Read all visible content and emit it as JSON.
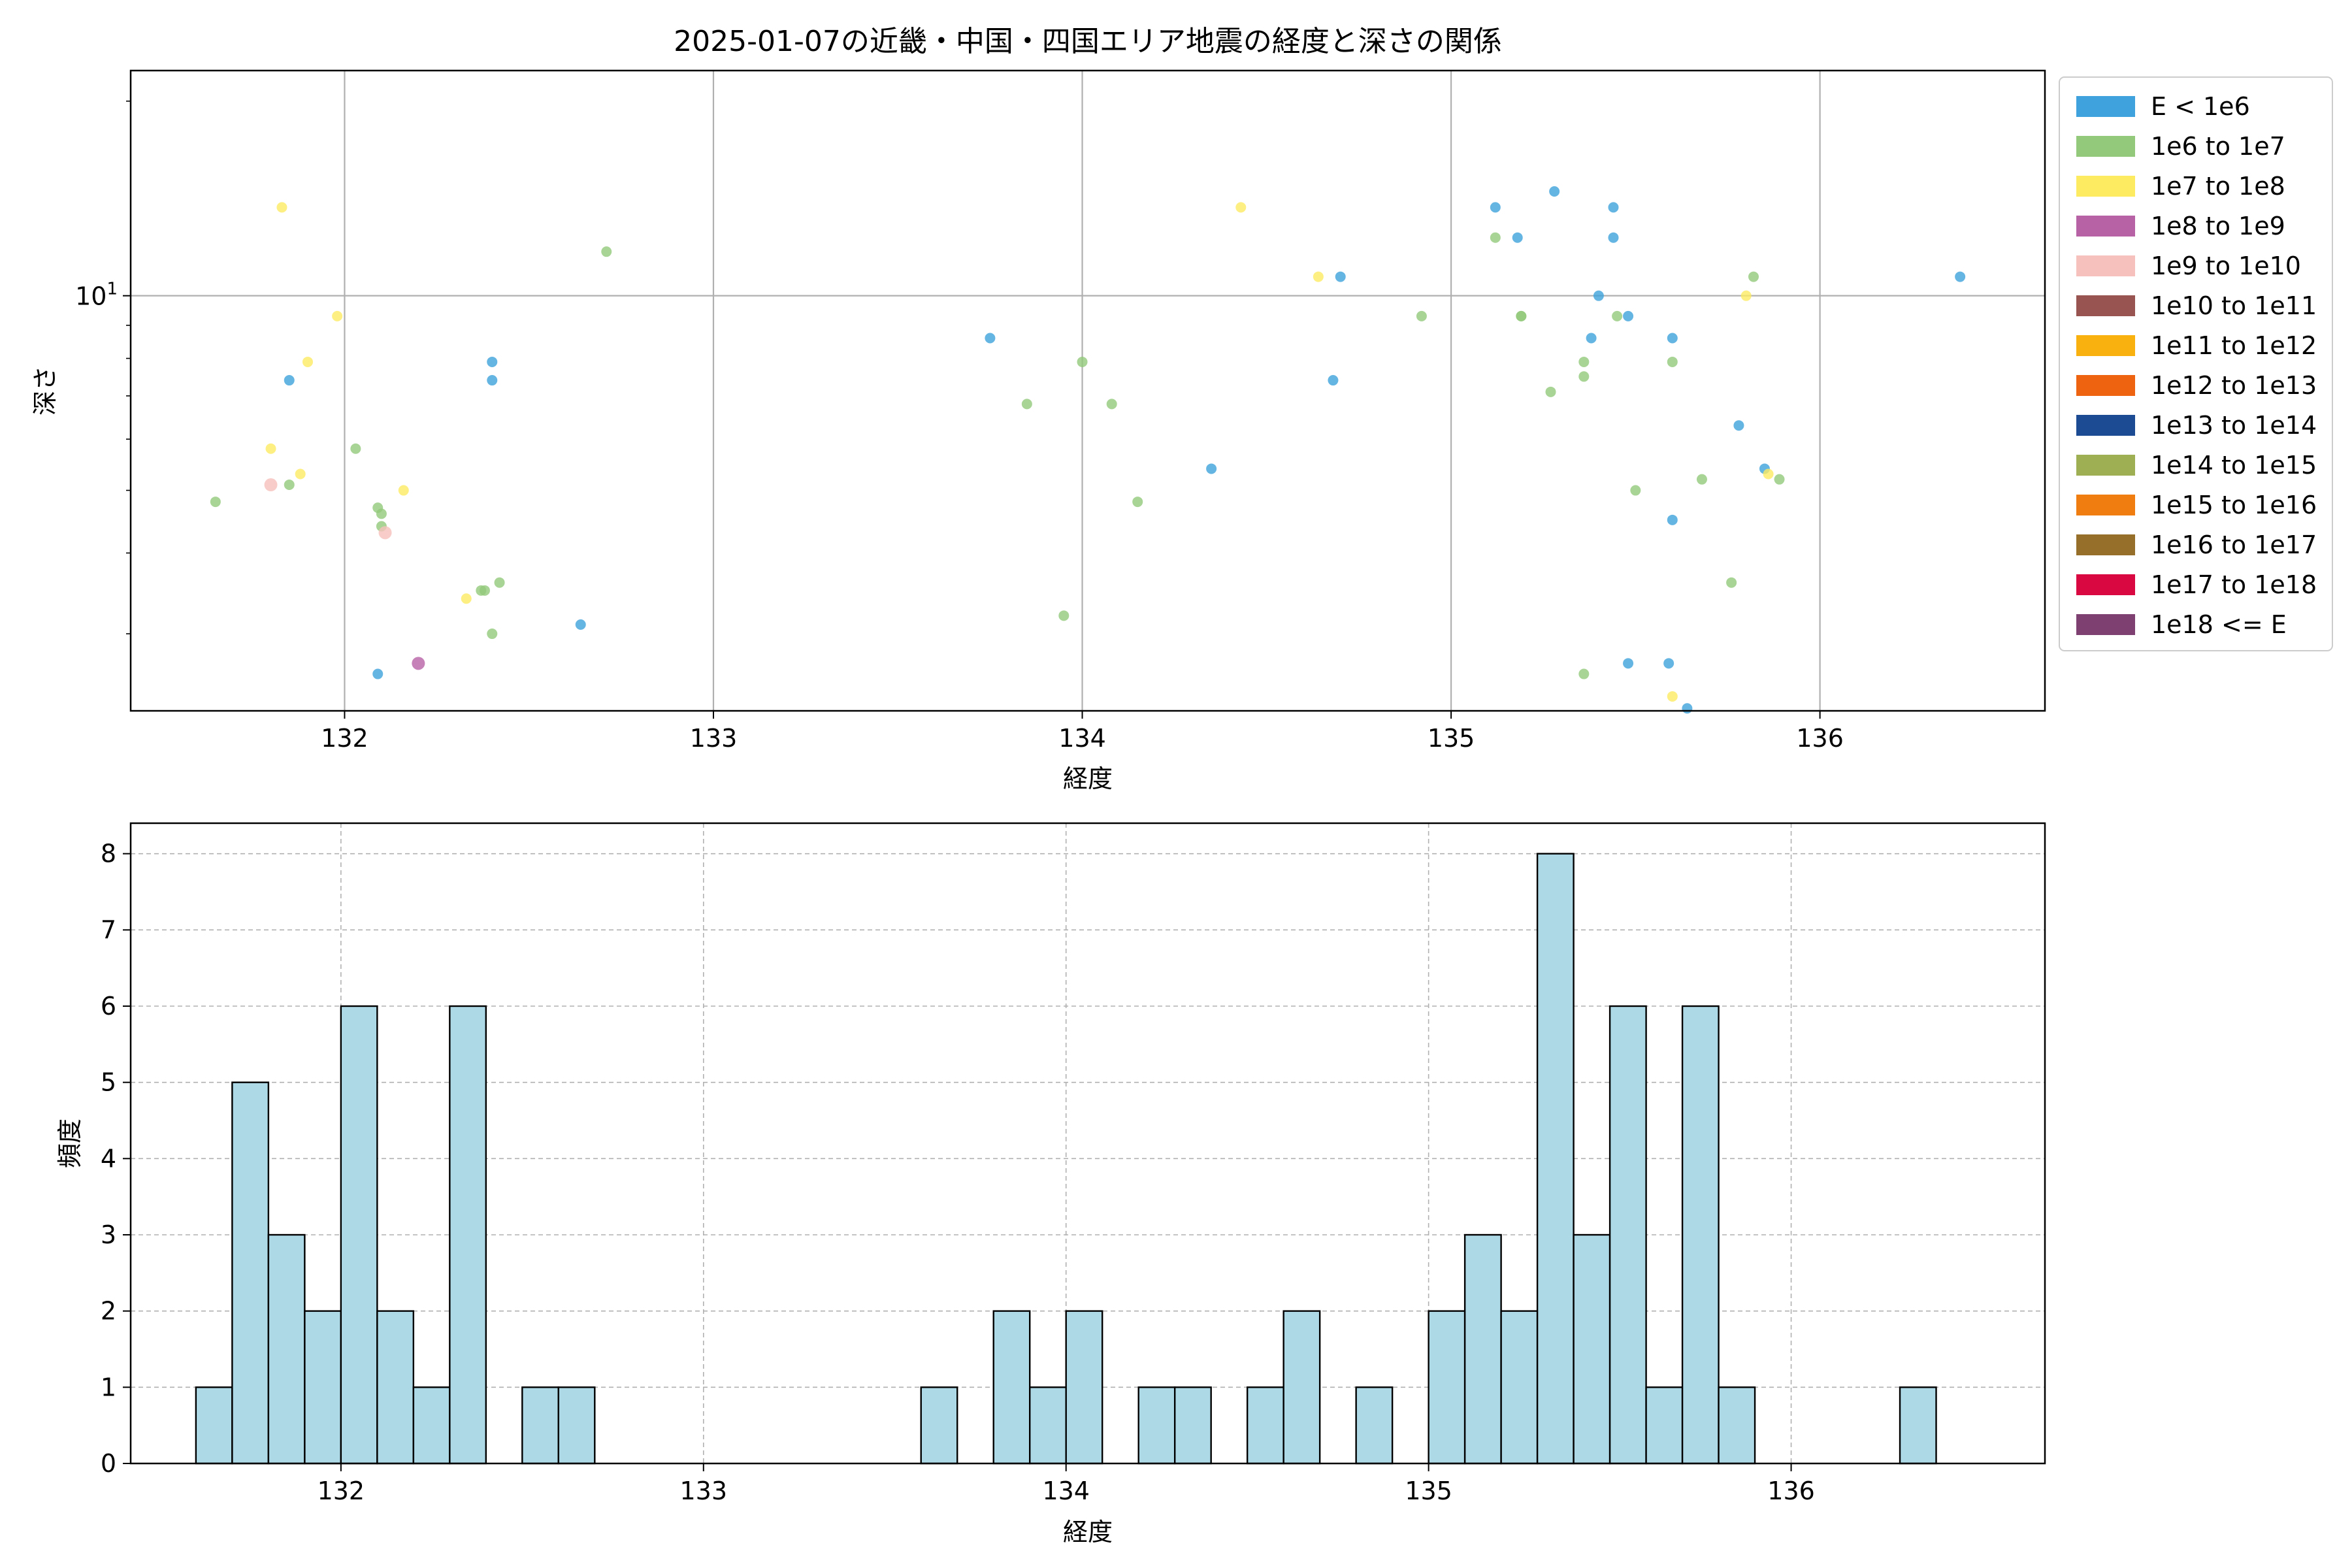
{
  "title": "2025-01-07の近畿・中国・四国エリア地震の経度と深さの関係",
  "chart_data": [
    {
      "type": "scatter",
      "title": "2025-01-07の近畿・中国・四国エリア地震の経度と深さの関係",
      "xlabel": "経度",
      "ylabel": "深さ",
      "yscale": "log",
      "xlim": [
        131.42,
        136.61
      ],
      "ylim": [
        2.28,
        22.3
      ],
      "x_ticks": [
        {
          "value": 132,
          "label": "132"
        },
        {
          "value": 133,
          "label": "133"
        },
        {
          "value": 134,
          "label": "134"
        },
        {
          "value": 135,
          "label": "135"
        },
        {
          "value": 136,
          "label": "136"
        }
      ],
      "y_ticks": [
        {
          "value": 10,
          "label": "10",
          "exp": "1"
        }
      ],
      "grid": true,
      "legend": {
        "placement": "outside-right",
        "entries": [
          {
            "label": "E < 1e6",
            "color": "#3fa2dc"
          },
          {
            "label": "1e6 to 1e7",
            "color": "#92c97b"
          },
          {
            "label": "1e7 to 1e8",
            "color": "#fdeb62"
          },
          {
            "label": "1e8 to 1e9",
            "color": "#b862a6"
          },
          {
            "label": "1e9 to 1e10",
            "color": "#f6c0bc"
          },
          {
            "label": "1e10 to 1e11",
            "color": "#975451"
          },
          {
            "label": "1e11 to 1e12",
            "color": "#f8b10f"
          },
          {
            "label": "1e12 to 1e13",
            "color": "#ee6310"
          },
          {
            "label": "1e13 to 1e14",
            "color": "#1d4b93"
          },
          {
            "label": "1e14 to 1e15",
            "color": "#9daf52"
          },
          {
            "label": "1e15 to 1e16",
            "color": "#ef7d10"
          },
          {
            "label": "1e16 to 1e17",
            "color": "#966f2b"
          },
          {
            "label": "1e17 to 1e18",
            "color": "#d90841"
          },
          {
            "label": "1e18 <= E",
            "color": "#7d4070"
          }
        ]
      },
      "series": [
        {
          "name": "E < 1e6",
          "color": "#3fa2dc",
          "points": [
            [
              131.85,
              7.4
            ],
            [
              132.09,
              2.6
            ],
            [
              132.4,
              7.4
            ],
            [
              132.4,
              7.9
            ],
            [
              132.64,
              3.1
            ],
            [
              133.75,
              8.6
            ],
            [
              134.35,
              5.4
            ],
            [
              134.68,
              7.4
            ],
            [
              134.7,
              10.7
            ],
            [
              135.12,
              13.7
            ],
            [
              135.18,
              12.3
            ],
            [
              135.28,
              14.5
            ],
            [
              135.4,
              10.0
            ],
            [
              135.38,
              8.6
            ],
            [
              135.44,
              13.7
            ],
            [
              135.44,
              12.3
            ],
            [
              135.48,
              9.3
            ],
            [
              135.48,
              2.7
            ],
            [
              135.6,
              8.6
            ],
            [
              135.6,
              4.5
            ],
            [
              135.59,
              2.7
            ],
            [
              135.64,
              2.3
            ],
            [
              135.78,
              6.3
            ],
            [
              135.85,
              5.4
            ],
            [
              136.38,
              10.7
            ]
          ]
        },
        {
          "name": "1e6 to 1e7",
          "color": "#92c97b",
          "points": [
            [
              131.65,
              4.8
            ],
            [
              131.85,
              5.1
            ],
            [
              132.03,
              5.8
            ],
            [
              132.09,
              4.7
            ],
            [
              132.1,
              4.6
            ],
            [
              132.1,
              4.4
            ],
            [
              132.37,
              3.5
            ],
            [
              132.38,
              3.5
            ],
            [
              132.42,
              3.6
            ],
            [
              132.4,
              3.0
            ],
            [
              132.71,
              11.7
            ],
            [
              133.85,
              6.8
            ],
            [
              133.95,
              3.2
            ],
            [
              134.0,
              7.9
            ],
            [
              134.08,
              6.8
            ],
            [
              134.15,
              4.8
            ],
            [
              134.92,
              9.3
            ],
            [
              135.12,
              12.3
            ],
            [
              135.19,
              9.3
            ],
            [
              135.19,
              9.3
            ],
            [
              135.27,
              7.1
            ],
            [
              135.36,
              7.9
            ],
            [
              135.36,
              7.5
            ],
            [
              135.36,
              2.6
            ],
            [
              135.45,
              9.3
            ],
            [
              135.5,
              5.0
            ],
            [
              135.6,
              7.9
            ],
            [
              135.68,
              5.2
            ],
            [
              135.76,
              3.6
            ],
            [
              135.82,
              10.7
            ],
            [
              135.89,
              5.2
            ]
          ]
        },
        {
          "name": "1e7 to 1e8",
          "color": "#fdeb62",
          "points": [
            [
              131.8,
              5.8
            ],
            [
              131.83,
              13.7
            ],
            [
              131.88,
              5.3
            ],
            [
              131.9,
              7.9
            ],
            [
              131.98,
              9.3
            ],
            [
              132.16,
              5.0
            ],
            [
              132.33,
              3.4
            ],
            [
              134.43,
              13.7
            ],
            [
              134.64,
              10.7
            ],
            [
              135.6,
              2.4
            ],
            [
              135.8,
              10.0
            ],
            [
              135.86,
              5.3
            ]
          ]
        },
        {
          "name": "1e8 to 1e9",
          "color": "#b862a6",
          "points": [
            [
              132.2,
              2.7
            ]
          ]
        },
        {
          "name": "1e9 to 1e10",
          "color": "#f6c0bc",
          "points": [
            [
              131.8,
              5.1
            ],
            [
              132.11,
              4.3
            ]
          ]
        }
      ]
    },
    {
      "type": "bar",
      "xlabel": "経度",
      "ylabel": "頻度",
      "xlim": [
        131.42,
        136.7
      ],
      "ylim": [
        0,
        8.4
      ],
      "bar_color": "#add8e6",
      "bar_edge_color": "#000000",
      "bin_width": 0.1,
      "x_ticks": [
        {
          "value": 132,
          "label": "132"
        },
        {
          "value": 133,
          "label": "133"
        },
        {
          "value": 134,
          "label": "134"
        },
        {
          "value": 135,
          "label": "135"
        },
        {
          "value": 136,
          "label": "136"
        }
      ],
      "y_ticks": [
        0,
        1,
        2,
        3,
        4,
        5,
        6,
        7,
        8
      ],
      "grid": true,
      "bins": [
        {
          "x": 131.65,
          "value": 1
        },
        {
          "x": 131.75,
          "value": 5
        },
        {
          "x": 131.85,
          "value": 3
        },
        {
          "x": 131.95,
          "value": 2
        },
        {
          "x": 132.05,
          "value": 6
        },
        {
          "x": 132.15,
          "value": 2
        },
        {
          "x": 132.25,
          "value": 1
        },
        {
          "x": 132.35,
          "value": 6
        },
        {
          "x": 132.55,
          "value": 1
        },
        {
          "x": 132.65,
          "value": 1
        },
        {
          "x": 133.65,
          "value": 1
        },
        {
          "x": 133.85,
          "value": 2
        },
        {
          "x": 133.95,
          "value": 1
        },
        {
          "x": 134.05,
          "value": 2
        },
        {
          "x": 134.25,
          "value": 1
        },
        {
          "x": 134.35,
          "value": 1
        },
        {
          "x": 134.55,
          "value": 1
        },
        {
          "x": 134.65,
          "value": 2
        },
        {
          "x": 134.85,
          "value": 1
        },
        {
          "x": 135.05,
          "value": 2
        },
        {
          "x": 135.15,
          "value": 3
        },
        {
          "x": 135.25,
          "value": 2
        },
        {
          "x": 135.35,
          "value": 8
        },
        {
          "x": 135.45,
          "value": 3
        },
        {
          "x": 135.55,
          "value": 6
        },
        {
          "x": 135.65,
          "value": 1
        },
        {
          "x": 135.75,
          "value": 6
        },
        {
          "x": 135.85,
          "value": 1
        },
        {
          "x": 136.35,
          "value": 1
        }
      ]
    }
  ]
}
